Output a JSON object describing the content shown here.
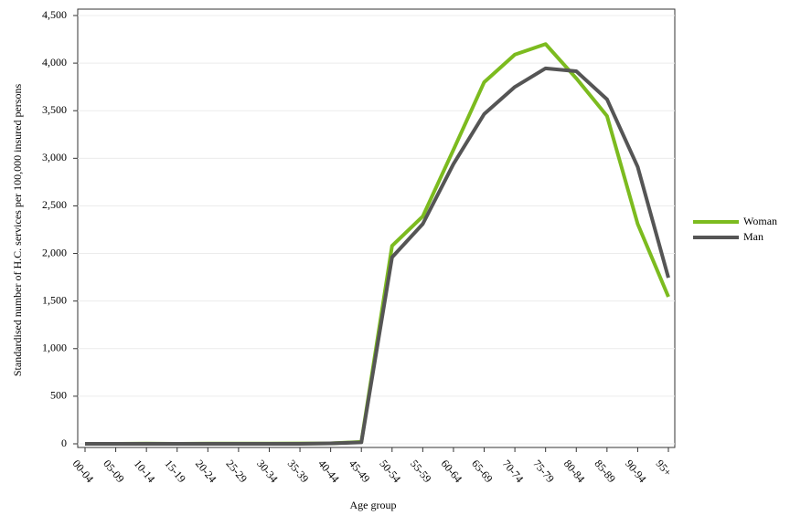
{
  "chart_data": {
    "type": "line",
    "x_label": "Age group",
    "y_label": "Standardised number of H.C. services per 100,000 insured persons",
    "categories": [
      "00-04",
      "05-09",
      "10-14",
      "15-19",
      "20-24",
      "25-29",
      "30-34",
      "35-39",
      "40-44",
      "45-49",
      "50-54",
      "55-59",
      "60-64",
      "65-69",
      "70-74",
      "75-79",
      "80-84",
      "85-89",
      "90-94",
      "95+"
    ],
    "series": [
      {
        "name": "Woman",
        "color": "#7cbb1f",
        "values": [
          0,
          0,
          2,
          0,
          2,
          2,
          2,
          3,
          5,
          20,
          2080,
          2390,
          3090,
          3800,
          4090,
          4200,
          3840,
          3445,
          2310,
          1545
        ]
      },
      {
        "name": "Man",
        "color": "#555555",
        "values": [
          0,
          0,
          0,
          0,
          0,
          0,
          0,
          0,
          5,
          15,
          1960,
          2310,
          2940,
          3465,
          3750,
          3945,
          3915,
          3620,
          2910,
          1745
        ]
      }
    ],
    "ylim": [
      0,
      4500
    ],
    "yticks": [
      0,
      500,
      {
        "value": 1000,
        "label": "1,000"
      },
      {
        "value": 1500,
        "label": "1,500"
      },
      {
        "value": 2000,
        "label": "2,000"
      },
      {
        "value": 2500,
        "label": "2,500"
      },
      {
        "value": 3000,
        "label": "3,000"
      },
      {
        "value": 3500,
        "label": "3,500"
      },
      {
        "value": 4000,
        "label": "4,000"
      },
      {
        "value": 4500,
        "label": "4,500"
      }
    ],
    "grid": true,
    "legend": "right"
  }
}
